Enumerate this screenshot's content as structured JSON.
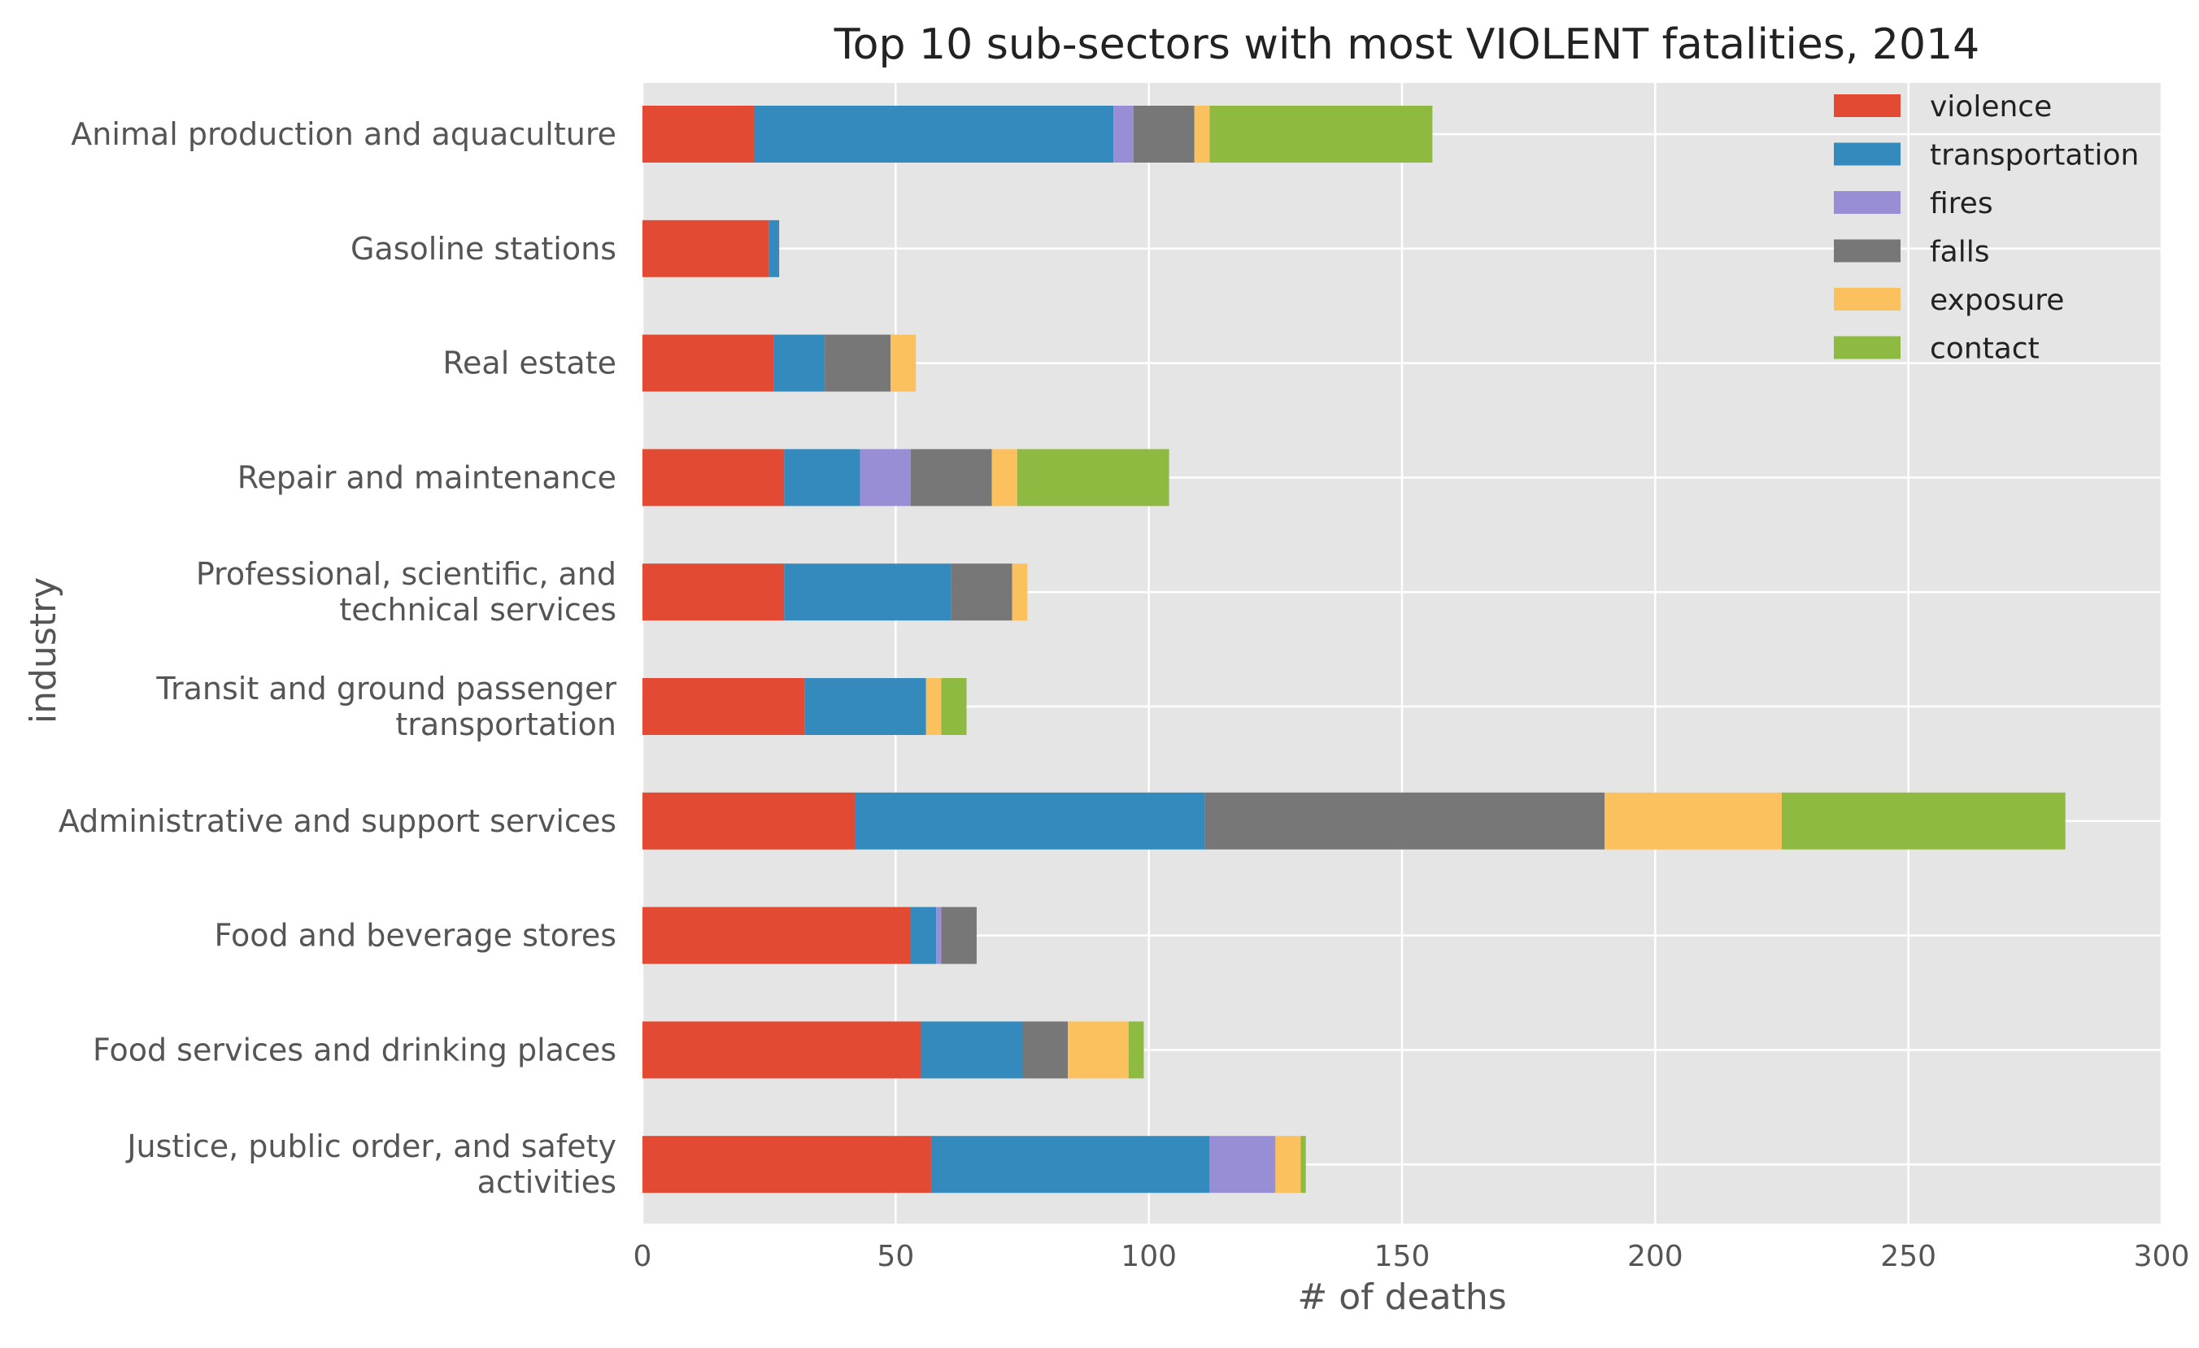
{
  "chart_data": {
    "type": "bar",
    "orientation": "horizontal",
    "stacked": true,
    "title": "Top 10 sub-sectors with most VIOLENT fatalities, 2014",
    "xlabel": "# of deaths",
    "ylabel": "industry",
    "xlim": [
      0,
      300
    ],
    "xticks": [
      0,
      50,
      100,
      150,
      200,
      250,
      300
    ],
    "grid": true,
    "legend_position": "top-right",
    "categories": [
      [
        "Animal production and aquaculture"
      ],
      [
        "Gasoline stations"
      ],
      [
        "Real estate"
      ],
      [
        "Repair and maintenance"
      ],
      [
        "Professional, scientific, and",
        "technical services"
      ],
      [
        "Transit and ground passenger",
        "transportation"
      ],
      [
        "Administrative and support services"
      ],
      [
        "Food and beverage stores"
      ],
      [
        "Food services and drinking places"
      ],
      [
        "Justice, public order, and safety",
        "activities"
      ]
    ],
    "series": [
      {
        "name": "violence",
        "color": "#E24A33",
        "values": [
          22,
          25,
          26,
          28,
          28,
          32,
          42,
          53,
          55,
          57
        ]
      },
      {
        "name": "transportation",
        "color": "#348ABD",
        "values": [
          71,
          2,
          10,
          15,
          33,
          24,
          69,
          5,
          20,
          55
        ]
      },
      {
        "name": "fires",
        "color": "#988ED5",
        "values": [
          4,
          0,
          0,
          10,
          0,
          0,
          0,
          1,
          0,
          13
        ]
      },
      {
        "name": "falls",
        "color": "#777777",
        "values": [
          12,
          0,
          13,
          16,
          12,
          0,
          79,
          7,
          9,
          0
        ]
      },
      {
        "name": "exposure",
        "color": "#FBC15E",
        "values": [
          3,
          0,
          5,
          5,
          3,
          3,
          35,
          0,
          12,
          5
        ]
      },
      {
        "name": "contact",
        "color": "#8EBA42",
        "values": [
          44,
          0,
          0,
          30,
          0,
          5,
          56,
          0,
          3,
          1
        ]
      }
    ]
  }
}
